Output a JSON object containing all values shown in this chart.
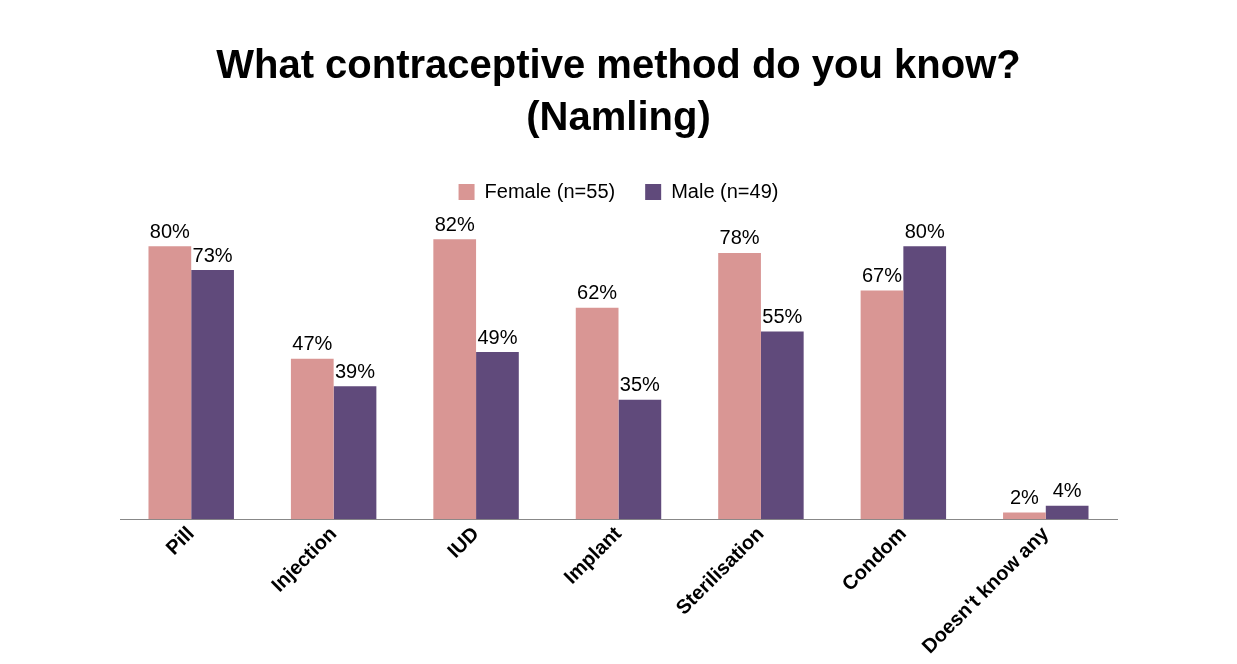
{
  "chart_data": {
    "type": "bar",
    "title": "What contraceptive method do you know? (Namling)",
    "categories": [
      "Pill",
      "Injection",
      "IUD",
      "Implant",
      "Sterilisation",
      "Condom",
      "Doesn't know any"
    ],
    "series": [
      {
        "name": "Female (n=55)",
        "color": "#d99694",
        "values": [
          80,
          47,
          82,
          62,
          78,
          67,
          2
        ],
        "value_labels": [
          "80%",
          "47%",
          "82%",
          "62%",
          "78%",
          "67%",
          "2%"
        ]
      },
      {
        "name": "Male (n=49)",
        "color": "#604a7b",
        "values": [
          73,
          39,
          49,
          35,
          55,
          80,
          4
        ],
        "value_labels": [
          "73%",
          "39%",
          "49%",
          "35%",
          "55%",
          "80%",
          "4%"
        ]
      }
    ],
    "legend": "top",
    "grid": false
  }
}
